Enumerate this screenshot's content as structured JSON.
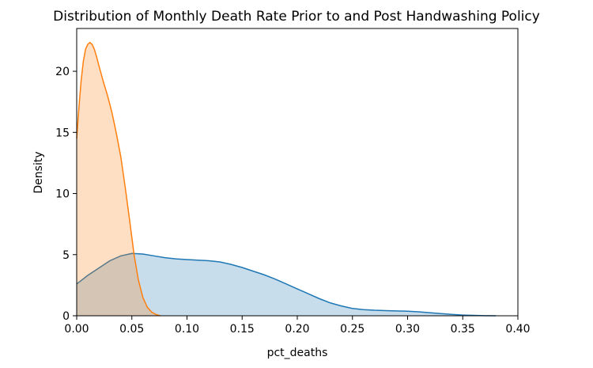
{
  "chart_data": {
    "type": "area",
    "title": "Distribution of Monthly Death Rate Prior to and Post Handwashing Policy",
    "xlabel": "pct_deaths",
    "ylabel": "Density",
    "xlim": [
      0.0,
      0.4
    ],
    "ylim": [
      0,
      23.5
    ],
    "x_ticks": [
      0.0,
      0.05,
      0.1,
      0.15,
      0.2,
      0.25,
      0.3,
      0.35,
      0.4
    ],
    "x_tick_labels": [
      "0.00",
      "0.05",
      "0.10",
      "0.15",
      "0.20",
      "0.25",
      "0.30",
      "0.35",
      "0.40"
    ],
    "y_ticks": [
      0,
      5,
      10,
      15,
      20
    ],
    "y_tick_labels": [
      "0",
      "5",
      "10",
      "15",
      "20"
    ],
    "grid": false,
    "legend": "none",
    "series": [
      {
        "color": "#1f77b4",
        "fill_color": "#1f77b4",
        "fill_opacity": 0.25,
        "points": [
          [
            0.0,
            2.6
          ],
          [
            0.01,
            3.3
          ],
          [
            0.02,
            3.9
          ],
          [
            0.03,
            4.5
          ],
          [
            0.04,
            4.9
          ],
          [
            0.05,
            5.1
          ],
          [
            0.06,
            5.05
          ],
          [
            0.07,
            4.9
          ],
          [
            0.08,
            4.75
          ],
          [
            0.09,
            4.65
          ],
          [
            0.1,
            4.6
          ],
          [
            0.11,
            4.55
          ],
          [
            0.12,
            4.5
          ],
          [
            0.13,
            4.4
          ],
          [
            0.14,
            4.2
          ],
          [
            0.15,
            3.95
          ],
          [
            0.16,
            3.65
          ],
          [
            0.17,
            3.35
          ],
          [
            0.18,
            3.0
          ],
          [
            0.19,
            2.6
          ],
          [
            0.2,
            2.2
          ],
          [
            0.21,
            1.8
          ],
          [
            0.22,
            1.4
          ],
          [
            0.23,
            1.05
          ],
          [
            0.24,
            0.8
          ],
          [
            0.25,
            0.6
          ],
          [
            0.26,
            0.5
          ],
          [
            0.27,
            0.45
          ],
          [
            0.28,
            0.42
          ],
          [
            0.29,
            0.4
          ],
          [
            0.3,
            0.37
          ],
          [
            0.31,
            0.32
          ],
          [
            0.32,
            0.25
          ],
          [
            0.33,
            0.18
          ],
          [
            0.34,
            0.11
          ],
          [
            0.35,
            0.06
          ],
          [
            0.36,
            0.03
          ],
          [
            0.37,
            0.01
          ],
          [
            0.38,
            0.0
          ]
        ]
      },
      {
        "color": "#ff7f0e",
        "fill_color": "#ff7f0e",
        "fill_opacity": 0.25,
        "points": [
          [
            0.0,
            14.5
          ],
          [
            0.002,
            17.0
          ],
          [
            0.004,
            19.2
          ],
          [
            0.006,
            20.8
          ],
          [
            0.008,
            21.8
          ],
          [
            0.01,
            22.2
          ],
          [
            0.012,
            22.35
          ],
          [
            0.014,
            22.2
          ],
          [
            0.016,
            21.8
          ],
          [
            0.018,
            21.2
          ],
          [
            0.02,
            20.5
          ],
          [
            0.024,
            19.2
          ],
          [
            0.028,
            18.0
          ],
          [
            0.032,
            16.6
          ],
          [
            0.036,
            14.9
          ],
          [
            0.04,
            13.0
          ],
          [
            0.044,
            10.5
          ],
          [
            0.048,
            7.8
          ],
          [
            0.052,
            5.0
          ],
          [
            0.056,
            2.9
          ],
          [
            0.06,
            1.5
          ],
          [
            0.064,
            0.7
          ],
          [
            0.068,
            0.3
          ],
          [
            0.072,
            0.1
          ],
          [
            0.076,
            0.0
          ]
        ]
      }
    ]
  }
}
